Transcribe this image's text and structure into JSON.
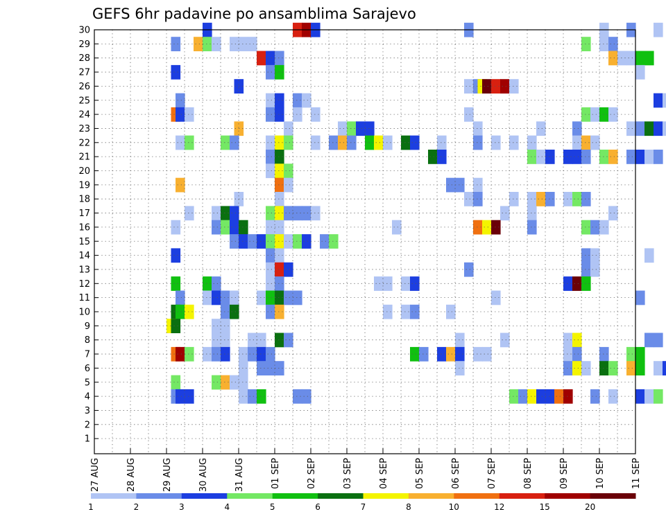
{
  "chart_data": {
    "type": "heatmap",
    "title": "GEFS 6hr padavine po ansamblima Sarajevo",
    "xlabel": "",
    "ylabel": "",
    "x_tick_labels": [
      "27 AUG",
      "28 AUG",
      "29 AUG",
      "30 AUG",
      "31 AUG",
      "01 SEP",
      "02 SEP",
      "03 SEP",
      "04 SEP",
      "05 SEP",
      "06 SEP",
      "07 SEP",
      "08 SEP",
      "09 SEP",
      "10 SEP",
      "11 SEP"
    ],
    "y_tick_labels": [
      "1",
      "2",
      "3",
      "4",
      "5",
      "6",
      "7",
      "8",
      "9",
      "10",
      "11",
      "12",
      "13",
      "14",
      "15",
      "16",
      "17",
      "18",
      "19",
      "20",
      "21",
      "22",
      "23",
      "24",
      "25",
      "26",
      "27",
      "28",
      "29",
      "30"
    ],
    "y_range": [
      1,
      30
    ],
    "x_range": [
      "27 AUG",
      "11 SEP"
    ],
    "time_step_hours": 6,
    "grid": true,
    "colorbar": {
      "levels": [
        "1",
        "2",
        "3",
        "4",
        "5",
        "6",
        "7",
        "8",
        "10",
        "12",
        "15",
        "20"
      ],
      "colors": [
        "#b0c4f4",
        "#6a8ce8",
        "#1c3ee0",
        "#74e864",
        "#10c010",
        "#0a7010",
        "#f4f400",
        "#f8b030",
        "#f07010",
        "#d82010",
        "#a00000",
        "#6a0008"
      ]
    },
    "note_levels": "cell value = colorbar bin index 0-11 (precipitation mm bins)",
    "cells": [
      [
        30,
        6.0,
        2
      ],
      [
        30,
        11.0,
        9
      ],
      [
        30,
        11.5,
        10
      ],
      [
        30,
        12.0,
        2
      ],
      [
        30,
        20.5,
        1
      ],
      [
        30,
        28.0,
        0
      ],
      [
        30,
        29.5,
        1
      ],
      [
        30,
        31.0,
        0
      ],
      [
        30,
        32.0,
        2
      ],
      [
        30,
        32.5,
        1
      ],
      [
        29,
        4.25,
        1
      ],
      [
        29,
        5.5,
        7
      ],
      [
        29,
        6.0,
        3
      ],
      [
        29,
        6.5,
        0
      ],
      [
        29,
        7.5,
        0
      ],
      [
        29,
        8.0,
        0
      ],
      [
        29,
        8.5,
        0
      ],
      [
        29,
        27.0,
        3
      ],
      [
        29,
        28.0,
        0
      ],
      [
        29,
        28.5,
        1
      ],
      [
        28,
        9.0,
        9
      ],
      [
        28,
        9.5,
        2
      ],
      [
        28,
        10.0,
        1
      ],
      [
        28,
        28.5,
        7
      ],
      [
        28,
        29.0,
        0
      ],
      [
        28,
        29.5,
        0
      ],
      [
        28,
        30.0,
        4
      ],
      [
        28,
        30.5,
        4
      ],
      [
        28,
        32.0,
        6
      ],
      [
        28,
        32.5,
        3
      ],
      [
        27,
        4.25,
        2
      ],
      [
        27,
        9.5,
        1
      ],
      [
        27,
        10.0,
        4
      ],
      [
        27,
        30.0,
        0
      ],
      [
        26,
        7.75,
        2
      ],
      [
        26,
        20.5,
        0
      ],
      [
        26,
        21.0,
        1
      ],
      [
        26,
        21.25,
        6
      ],
      [
        26,
        21.5,
        11
      ],
      [
        26,
        22.0,
        9
      ],
      [
        26,
        22.5,
        10
      ],
      [
        26,
        23.0,
        0
      ],
      [
        25,
        4.5,
        1
      ],
      [
        25,
        9.5,
        0
      ],
      [
        25,
        10.0,
        2
      ],
      [
        25,
        11.0,
        1
      ],
      [
        25,
        11.5,
        0
      ],
      [
        25,
        31.0,
        2
      ],
      [
        25,
        31.5,
        0
      ],
      [
        25,
        32.0,
        3
      ],
      [
        25,
        32.5,
        4
      ],
      [
        25,
        33.0,
        1
      ],
      [
        24,
        4.25,
        8
      ],
      [
        24,
        4.5,
        2
      ],
      [
        24,
        5.0,
        0
      ],
      [
        24,
        9.5,
        1
      ],
      [
        24,
        10.0,
        2
      ],
      [
        24,
        11.0,
        0
      ],
      [
        24,
        12.0,
        0
      ],
      [
        24,
        20.5,
        0
      ],
      [
        24,
        27.0,
        3
      ],
      [
        24,
        27.5,
        0
      ],
      [
        24,
        28.0,
        4
      ],
      [
        24,
        28.5,
        0
      ],
      [
        23,
        7.75,
        7
      ],
      [
        23,
        10.5,
        0
      ],
      [
        23,
        13.5,
        0
      ],
      [
        23,
        14.0,
        3
      ],
      [
        23,
        14.5,
        2
      ],
      [
        23,
        15.0,
        2
      ],
      [
        23,
        21.0,
        0
      ],
      [
        23,
        24.5,
        0
      ],
      [
        23,
        26.5,
        1
      ],
      [
        23,
        29.5,
        0
      ],
      [
        23,
        30.0,
        1
      ],
      [
        23,
        30.5,
        5
      ],
      [
        23,
        31.0,
        2
      ],
      [
        23,
        31.5,
        0
      ],
      [
        22,
        4.5,
        0
      ],
      [
        22,
        5.0,
        3
      ],
      [
        22,
        7.0,
        3
      ],
      [
        22,
        7.5,
        1
      ],
      [
        22,
        9.5,
        0
      ],
      [
        22,
        10.0,
        6
      ],
      [
        22,
        10.5,
        3
      ],
      [
        22,
        12.0,
        0
      ],
      [
        22,
        13.0,
        1
      ],
      [
        22,
        13.5,
        7
      ],
      [
        22,
        14.0,
        1
      ],
      [
        22,
        15.0,
        4
      ],
      [
        22,
        15.5,
        6
      ],
      [
        22,
        16.0,
        0
      ],
      [
        22,
        17.0,
        5
      ],
      [
        22,
        17.5,
        2
      ],
      [
        22,
        19.0,
        0
      ],
      [
        22,
        21.0,
        1
      ],
      [
        22,
        22.0,
        0
      ],
      [
        22,
        23.0,
        0
      ],
      [
        22,
        24.0,
        0
      ],
      [
        22,
        26.5,
        0
      ],
      [
        22,
        27.0,
        7
      ],
      [
        22,
        27.5,
        0
      ],
      [
        21,
        9.5,
        1
      ],
      [
        21,
        10.0,
        5
      ],
      [
        21,
        18.5,
        5
      ],
      [
        21,
        19.0,
        2
      ],
      [
        21,
        24.0,
        3
      ],
      [
        21,
        24.5,
        0
      ],
      [
        21,
        25.0,
        2
      ],
      [
        21,
        26.0,
        2
      ],
      [
        21,
        26.5,
        2
      ],
      [
        21,
        27.0,
        1
      ],
      [
        21,
        28.0,
        3
      ],
      [
        21,
        28.5,
        7
      ],
      [
        21,
        29.5,
        1
      ],
      [
        21,
        30.0,
        2
      ],
      [
        21,
        30.5,
        0
      ],
      [
        21,
        31.0,
        1
      ],
      [
        20,
        9.5,
        0
      ],
      [
        20,
        10.0,
        6
      ],
      [
        20,
        10.5,
        3
      ],
      [
        19,
        4.5,
        7
      ],
      [
        19,
        10.0,
        8
      ],
      [
        19,
        10.5,
        0
      ],
      [
        19,
        19.5,
        1
      ],
      [
        19,
        20.0,
        1
      ],
      [
        19,
        21.0,
        0
      ],
      [
        18,
        7.75,
        0
      ],
      [
        18,
        10.0,
        0
      ],
      [
        18,
        20.5,
        0
      ],
      [
        18,
        21.0,
        1
      ],
      [
        18,
        23.0,
        0
      ],
      [
        18,
        24.0,
        0
      ],
      [
        18,
        24.5,
        7
      ],
      [
        18,
        25.0,
        1
      ],
      [
        18,
        26.0,
        0
      ],
      [
        18,
        26.5,
        3
      ],
      [
        18,
        27.0,
        1
      ],
      [
        17,
        5.0,
        0
      ],
      [
        17,
        6.5,
        0
      ],
      [
        17,
        7.0,
        5
      ],
      [
        17,
        7.5,
        2
      ],
      [
        17,
        9.5,
        3
      ],
      [
        17,
        10.0,
        6
      ],
      [
        17,
        10.5,
        1
      ],
      [
        17,
        11.0,
        1
      ],
      [
        17,
        11.5,
        1
      ],
      [
        17,
        12.0,
        0
      ],
      [
        17,
        22.5,
        0
      ],
      [
        17,
        24.0,
        0
      ],
      [
        17,
        28.5,
        0
      ],
      [
        16,
        4.25,
        0
      ],
      [
        16,
        6.5,
        1
      ],
      [
        16,
        7.0,
        3
      ],
      [
        16,
        7.5,
        2
      ],
      [
        16,
        8.0,
        5
      ],
      [
        16,
        9.5,
        0
      ],
      [
        16,
        10.0,
        0
      ],
      [
        16,
        16.5,
        0
      ],
      [
        16,
        21.0,
        8
      ],
      [
        16,
        21.5,
        6
      ],
      [
        16,
        22.0,
        11
      ],
      [
        16,
        24.0,
        1
      ],
      [
        16,
        27.0,
        3
      ],
      [
        16,
        27.5,
        1
      ],
      [
        16,
        28.0,
        0
      ],
      [
        15,
        7.5,
        1
      ],
      [
        15,
        8.0,
        2
      ],
      [
        15,
        8.5,
        1
      ],
      [
        15,
        9.0,
        2
      ],
      [
        15,
        9.5,
        3
      ],
      [
        15,
        10.0,
        6
      ],
      [
        15,
        10.5,
        0
      ],
      [
        15,
        11.0,
        3
      ],
      [
        15,
        11.5,
        2
      ],
      [
        15,
        12.5,
        1
      ],
      [
        15,
        13.0,
        3
      ],
      [
        14,
        4.25,
        2
      ],
      [
        14,
        9.5,
        1
      ],
      [
        14,
        10.0,
        0
      ],
      [
        14,
        27.0,
        1
      ],
      [
        14,
        27.5,
        0
      ],
      [
        14,
        30.5,
        0
      ],
      [
        13,
        9.5,
        0
      ],
      [
        13,
        10.0,
        9
      ],
      [
        13,
        10.5,
        2
      ],
      [
        13,
        20.5,
        1
      ],
      [
        13,
        27.0,
        1
      ],
      [
        13,
        27.5,
        0
      ],
      [
        12,
        4.25,
        4
      ],
      [
        12,
        6.0,
        4
      ],
      [
        12,
        6.5,
        1
      ],
      [
        12,
        9.5,
        0
      ],
      [
        12,
        10.0,
        1
      ],
      [
        12,
        15.5,
        0
      ],
      [
        12,
        16.0,
        0
      ],
      [
        12,
        17.0,
        0
      ],
      [
        12,
        17.5,
        2
      ],
      [
        12,
        26.0,
        2
      ],
      [
        12,
        26.5,
        11
      ],
      [
        12,
        27.0,
        4
      ],
      [
        11,
        4.5,
        1
      ],
      [
        11,
        6.0,
        0
      ],
      [
        11,
        6.5,
        2
      ],
      [
        11,
        7.0,
        1
      ],
      [
        11,
        7.5,
        0
      ],
      [
        11,
        9.0,
        0
      ],
      [
        11,
        9.5,
        4
      ],
      [
        11,
        10.0,
        5
      ],
      [
        11,
        10.5,
        1
      ],
      [
        11,
        11.0,
        1
      ],
      [
        11,
        22.0,
        0
      ],
      [
        11,
        30.0,
        1
      ],
      [
        10,
        4.25,
        5
      ],
      [
        10,
        4.5,
        4
      ],
      [
        10,
        5.0,
        6
      ],
      [
        10,
        7.0,
        1
      ],
      [
        10,
        7.5,
        5
      ],
      [
        10,
        9.5,
        1
      ],
      [
        10,
        10.0,
        7
      ],
      [
        10,
        16.0,
        0
      ],
      [
        10,
        17.0,
        0
      ],
      [
        10,
        17.5,
        1
      ],
      [
        10,
        19.5,
        0
      ],
      [
        9,
        4.0,
        6
      ],
      [
        9,
        4.25,
        5
      ],
      [
        9,
        6.5,
        0
      ],
      [
        9,
        7.0,
        0
      ],
      [
        8,
        6.5,
        0
      ],
      [
        8,
        7.0,
        0
      ],
      [
        8,
        8.5,
        0
      ],
      [
        8,
        9.0,
        0
      ],
      [
        8,
        10.0,
        5
      ],
      [
        8,
        10.5,
        1
      ],
      [
        8,
        20.0,
        0
      ],
      [
        8,
        22.5,
        0
      ],
      [
        8,
        26.0,
        0
      ],
      [
        8,
        26.5,
        6
      ],
      [
        8,
        30.5,
        1
      ],
      [
        8,
        31.0,
        1
      ],
      [
        8,
        32.0,
        5
      ],
      [
        8,
        32.5,
        2
      ],
      [
        7,
        4.25,
        8
      ],
      [
        7,
        4.5,
        10
      ],
      [
        7,
        5.0,
        3
      ],
      [
        7,
        6.0,
        0
      ],
      [
        7,
        6.5,
        1
      ],
      [
        7,
        7.0,
        2
      ],
      [
        7,
        8.0,
        0
      ],
      [
        7,
        8.5,
        1
      ],
      [
        7,
        9.0,
        2
      ],
      [
        7,
        9.5,
        1
      ],
      [
        7,
        17.5,
        4
      ],
      [
        7,
        18.0,
        1
      ],
      [
        7,
        19.0,
        2
      ],
      [
        7,
        19.5,
        7
      ],
      [
        7,
        20.0,
        2
      ],
      [
        7,
        21.0,
        0
      ],
      [
        7,
        21.5,
        0
      ],
      [
        7,
        26.0,
        0
      ],
      [
        7,
        26.5,
        1
      ],
      [
        7,
        28.0,
        1
      ],
      [
        7,
        29.5,
        3
      ],
      [
        7,
        30.0,
        4
      ],
      [
        7,
        32.0,
        3
      ],
      [
        7,
        32.5,
        5
      ],
      [
        6,
        8.0,
        0
      ],
      [
        6,
        9.0,
        1
      ],
      [
        6,
        9.5,
        1
      ],
      [
        6,
        10.0,
        1
      ],
      [
        6,
        20.0,
        0
      ],
      [
        6,
        26.0,
        1
      ],
      [
        6,
        26.5,
        6
      ],
      [
        6,
        27.0,
        0
      ],
      [
        6,
        28.0,
        5
      ],
      [
        6,
        28.5,
        3
      ],
      [
        6,
        29.5,
        7
      ],
      [
        6,
        30.0,
        4
      ],
      [
        6,
        31.0,
        0
      ],
      [
        6,
        31.5,
        2
      ],
      [
        6,
        32.0,
        3
      ],
      [
        5,
        4.25,
        3
      ],
      [
        5,
        6.5,
        3
      ],
      [
        5,
        7.0,
        7
      ],
      [
        5,
        7.5,
        0
      ],
      [
        5,
        8.0,
        0
      ],
      [
        4,
        4.25,
        1
      ],
      [
        4,
        4.5,
        2
      ],
      [
        4,
        5.0,
        2
      ],
      [
        4,
        8.0,
        0
      ],
      [
        4,
        8.5,
        1
      ],
      [
        4,
        9.0,
        4
      ],
      [
        4,
        11.0,
        1
      ],
      [
        4,
        11.5,
        1
      ],
      [
        4,
        23.0,
        3
      ],
      [
        4,
        23.5,
        1
      ],
      [
        4,
        24.0,
        6
      ],
      [
        4,
        24.5,
        2
      ],
      [
        4,
        25.0,
        2
      ],
      [
        4,
        25.5,
        8
      ],
      [
        4,
        26.0,
        10
      ],
      [
        4,
        27.5,
        1
      ],
      [
        4,
        28.5,
        0
      ],
      [
        4,
        30.0,
        2
      ],
      [
        4,
        30.5,
        0
      ],
      [
        4,
        31.0,
        3
      ]
    ]
  }
}
